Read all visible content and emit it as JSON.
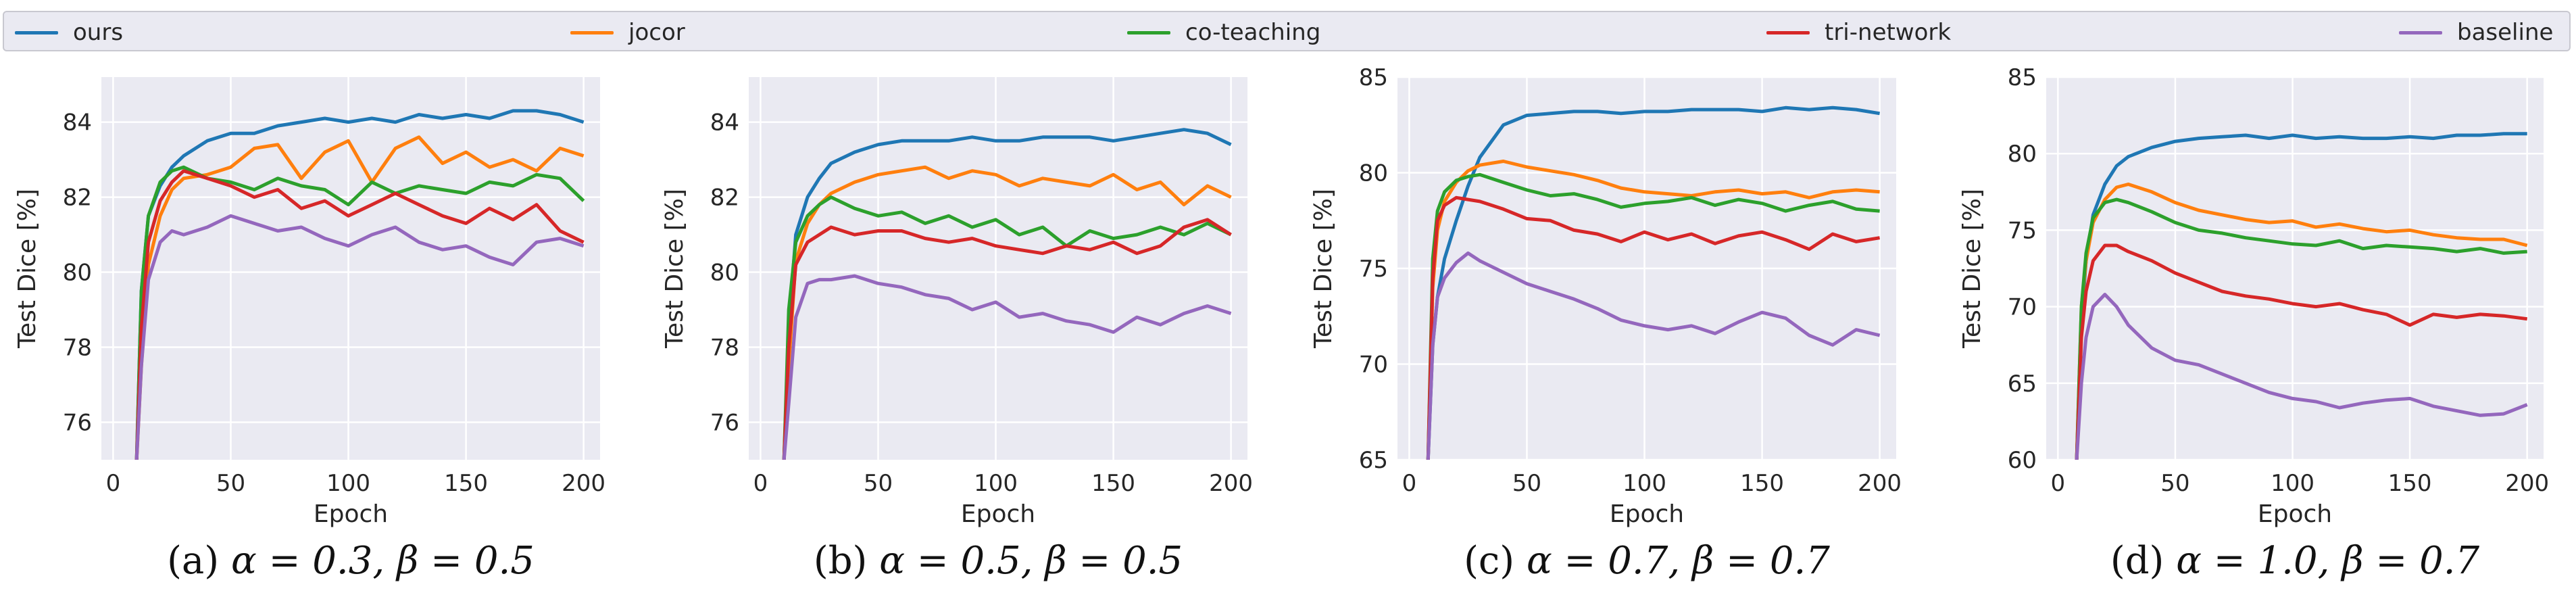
{
  "legend": {
    "items": [
      {
        "label": "ours",
        "color": "#1f77b4"
      },
      {
        "label": "jocor",
        "color": "#ff7f0e"
      },
      {
        "label": "co-teaching",
        "color": "#2ca02c"
      },
      {
        "label": "tri-network",
        "color": "#d62728"
      },
      {
        "label": "baseline",
        "color": "#9467bd"
      }
    ]
  },
  "chart_data": [
    {
      "type": "line",
      "caption_label": "(a)",
      "caption_formula": "α = 0.3, β = 0.5",
      "xlabel": "Epoch",
      "ylabel": "Test Dice [%]",
      "xlim": [
        -5,
        207
      ],
      "ylim": [
        75,
        85.2
      ],
      "xticks": [
        0,
        50,
        100,
        150,
        200
      ],
      "yticks": [
        76,
        78,
        80,
        82,
        84
      ],
      "grid": true,
      "x": [
        10,
        12,
        15,
        20,
        25,
        30,
        40,
        50,
        60,
        70,
        80,
        90,
        100,
        110,
        120,
        130,
        140,
        150,
        160,
        170,
        180,
        190,
        200
      ],
      "series": [
        {
          "name": "ours",
          "color": "#1f77b4",
          "values": [
            75,
            79.5,
            81.5,
            82.3,
            82.8,
            83.1,
            83.5,
            83.7,
            83.7,
            83.9,
            84.0,
            84.1,
            84.0,
            84.1,
            84.0,
            84.2,
            84.1,
            84.2,
            84.1,
            84.3,
            84.3,
            84.2,
            84.0
          ]
        },
        {
          "name": "jocor",
          "color": "#ff7f0e",
          "values": [
            75,
            77.5,
            80.2,
            81.5,
            82.2,
            82.5,
            82.6,
            82.8,
            83.3,
            83.4,
            82.5,
            83.2,
            83.5,
            82.4,
            83.3,
            83.6,
            82.9,
            83.2,
            82.8,
            83.0,
            82.7,
            83.3,
            83.1
          ]
        },
        {
          "name": "co-teaching",
          "color": "#2ca02c",
          "values": [
            75,
            79.5,
            81.5,
            82.4,
            82.7,
            82.8,
            82.5,
            82.4,
            82.2,
            82.5,
            82.3,
            82.2,
            81.8,
            82.4,
            82.1,
            82.3,
            82.2,
            82.1,
            82.4,
            82.3,
            82.6,
            82.5,
            81.9
          ]
        },
        {
          "name": "tri-network",
          "color": "#d62728",
          "values": [
            75,
            78.5,
            80.8,
            81.9,
            82.4,
            82.7,
            82.5,
            82.3,
            82.0,
            82.2,
            81.7,
            81.9,
            81.5,
            81.8,
            82.1,
            81.8,
            81.5,
            81.3,
            81.7,
            81.4,
            81.8,
            81.1,
            80.8
          ]
        },
        {
          "name": "baseline",
          "color": "#9467bd",
          "values": [
            75,
            77.5,
            79.8,
            80.8,
            81.1,
            81.0,
            81.2,
            81.5,
            81.3,
            81.1,
            81.2,
            80.9,
            80.7,
            81.0,
            81.2,
            80.8,
            80.6,
            80.7,
            80.4,
            80.2,
            80.8,
            80.9,
            80.7
          ]
        }
      ]
    },
    {
      "type": "line",
      "caption_label": "(b)",
      "caption_formula": "α = 0.5, β = 0.5",
      "xlabel": "Epoch",
      "ylabel": "Test Dice [%]",
      "xlim": [
        -5,
        207
      ],
      "ylim": [
        75,
        85.2
      ],
      "xticks": [
        0,
        50,
        100,
        150,
        200
      ],
      "yticks": [
        76,
        78,
        80,
        82,
        84
      ],
      "grid": true,
      "x": [
        10,
        12,
        15,
        20,
        25,
        30,
        40,
        50,
        60,
        70,
        80,
        90,
        100,
        110,
        120,
        130,
        140,
        150,
        160,
        170,
        180,
        190,
        200
      ],
      "series": [
        {
          "name": "ours",
          "color": "#1f77b4",
          "values": [
            75,
            78.5,
            81.0,
            82.0,
            82.5,
            82.9,
            83.2,
            83.4,
            83.5,
            83.5,
            83.5,
            83.6,
            83.5,
            83.5,
            83.6,
            83.6,
            83.6,
            83.5,
            83.6,
            83.7,
            83.8,
            83.7,
            83.4
          ]
        },
        {
          "name": "jocor",
          "color": "#ff7f0e",
          "values": [
            75,
            77.5,
            80.3,
            81.3,
            81.8,
            82.1,
            82.4,
            82.6,
            82.7,
            82.8,
            82.5,
            82.7,
            82.6,
            82.3,
            82.5,
            82.4,
            82.3,
            82.6,
            82.2,
            82.4,
            81.8,
            82.3,
            82.0
          ]
        },
        {
          "name": "co-teaching",
          "color": "#2ca02c",
          "values": [
            75,
            79.0,
            80.8,
            81.5,
            81.8,
            82.0,
            81.7,
            81.5,
            81.6,
            81.3,
            81.5,
            81.2,
            81.4,
            81.0,
            81.2,
            80.7,
            81.1,
            80.9,
            81.0,
            81.2,
            81.0,
            81.3,
            81.0
          ]
        },
        {
          "name": "tri-network",
          "color": "#d62728",
          "values": [
            75,
            78.0,
            80.2,
            80.8,
            81.0,
            81.2,
            81.0,
            81.1,
            81.1,
            80.9,
            80.8,
            80.9,
            80.7,
            80.6,
            80.5,
            80.7,
            80.6,
            80.8,
            80.5,
            80.7,
            81.2,
            81.4,
            81.0
          ]
        },
        {
          "name": "baseline",
          "color": "#9467bd",
          "values": [
            75,
            76.5,
            78.8,
            79.7,
            79.8,
            79.8,
            79.9,
            79.7,
            79.6,
            79.4,
            79.3,
            79.0,
            79.2,
            78.8,
            78.9,
            78.7,
            78.6,
            78.4,
            78.8,
            78.6,
            78.9,
            79.1,
            78.9
          ]
        }
      ]
    },
    {
      "type": "line",
      "caption_label": "(c)",
      "caption_formula": "α = 0.7, β = 0.7",
      "xlabel": "Epoch",
      "ylabel": "Test Dice [%]",
      "xlim": [
        -5,
        207
      ],
      "ylim": [
        65,
        85
      ],
      "xticks": [
        0,
        50,
        100,
        150,
        200
      ],
      "yticks": [
        65,
        70,
        75,
        80,
        85
      ],
      "grid": true,
      "x": [
        8,
        10,
        12,
        15,
        20,
        25,
        30,
        40,
        50,
        60,
        70,
        80,
        90,
        100,
        110,
        120,
        130,
        140,
        150,
        160,
        170,
        180,
        190,
        200
      ],
      "series": [
        {
          "name": "ours",
          "color": "#1f77b4",
          "values": [
            65,
            71.0,
            73.5,
            75.5,
            77.5,
            79.3,
            80.8,
            82.5,
            83.0,
            83.1,
            83.2,
            83.2,
            83.1,
            83.2,
            83.2,
            83.3,
            83.3,
            83.3,
            83.2,
            83.4,
            83.3,
            83.4,
            83.3,
            83.1
          ]
        },
        {
          "name": "jocor",
          "color": "#ff7f0e",
          "values": [
            65,
            74.0,
            77.0,
            78.5,
            79.5,
            80.1,
            80.4,
            80.6,
            80.3,
            80.1,
            79.9,
            79.6,
            79.2,
            79.0,
            78.9,
            78.8,
            79.0,
            79.1,
            78.9,
            79.0,
            78.7,
            79.0,
            79.1,
            79.0
          ]
        },
        {
          "name": "co-teaching",
          "color": "#2ca02c",
          "values": [
            65,
            75.5,
            78.0,
            79.0,
            79.6,
            79.8,
            79.9,
            79.5,
            79.1,
            78.8,
            78.9,
            78.6,
            78.2,
            78.4,
            78.5,
            78.7,
            78.3,
            78.6,
            78.4,
            78.0,
            78.3,
            78.5,
            78.1,
            78.0
          ]
        },
        {
          "name": "tri-network",
          "color": "#d62728",
          "values": [
            65,
            74.5,
            77.5,
            78.3,
            78.7,
            78.6,
            78.5,
            78.1,
            77.6,
            77.5,
            77.0,
            76.8,
            76.4,
            76.9,
            76.5,
            76.8,
            76.3,
            76.7,
            76.9,
            76.5,
            76.0,
            76.8,
            76.4,
            76.6
          ]
        },
        {
          "name": "baseline",
          "color": "#9467bd",
          "values": [
            65,
            71.0,
            73.5,
            74.5,
            75.3,
            75.8,
            75.4,
            74.8,
            74.2,
            73.8,
            73.4,
            72.9,
            72.3,
            72.0,
            71.8,
            72.0,
            71.6,
            72.2,
            72.7,
            72.4,
            71.5,
            71.0,
            71.8,
            71.5
          ]
        }
      ]
    },
    {
      "type": "line",
      "caption_label": "(d)",
      "caption_formula": "α = 1.0, β = 0.7",
      "xlabel": "Epoch",
      "ylabel": "Test Dice [%]",
      "xlim": [
        -5,
        207
      ],
      "ylim": [
        60,
        85
      ],
      "xticks": [
        0,
        50,
        100,
        150,
        200
      ],
      "yticks": [
        60,
        65,
        70,
        75,
        80,
        85
      ],
      "grid": true,
      "x": [
        8,
        10,
        12,
        15,
        20,
        25,
        30,
        40,
        50,
        60,
        70,
        80,
        90,
        100,
        110,
        120,
        130,
        140,
        150,
        160,
        170,
        180,
        190,
        200
      ],
      "series": [
        {
          "name": "ours",
          "color": "#1f77b4",
          "values": [
            60,
            69.0,
            73.0,
            76.0,
            78.0,
            79.2,
            79.8,
            80.4,
            80.8,
            81.0,
            81.1,
            81.2,
            81.0,
            81.2,
            81.0,
            81.1,
            81.0,
            81.0,
            81.1,
            81.0,
            81.2,
            81.2,
            81.3,
            81.3
          ]
        },
        {
          "name": "jocor",
          "color": "#ff7f0e",
          "values": [
            60,
            70.0,
            73.0,
            75.5,
            77.0,
            77.8,
            78.0,
            77.5,
            76.8,
            76.3,
            76.0,
            75.7,
            75.5,
            75.6,
            75.2,
            75.4,
            75.1,
            74.9,
            75.0,
            74.7,
            74.5,
            74.4,
            74.4,
            74.0
          ]
        },
        {
          "name": "co-teaching",
          "color": "#2ca02c",
          "values": [
            60,
            70.0,
            73.5,
            75.8,
            76.8,
            77.0,
            76.8,
            76.2,
            75.5,
            75.0,
            74.8,
            74.5,
            74.3,
            74.1,
            74.0,
            74.3,
            73.8,
            74.0,
            73.9,
            73.8,
            73.6,
            73.8,
            73.5,
            73.6
          ]
        },
        {
          "name": "tri-network",
          "color": "#d62728",
          "values": [
            60,
            68.0,
            71.0,
            73.0,
            74.0,
            74.0,
            73.6,
            73.0,
            72.2,
            71.6,
            71.0,
            70.7,
            70.5,
            70.2,
            70.0,
            70.2,
            69.8,
            69.5,
            68.8,
            69.5,
            69.3,
            69.5,
            69.4,
            69.2
          ]
        },
        {
          "name": "baseline",
          "color": "#9467bd",
          "values": [
            60,
            65.0,
            68.0,
            70.0,
            70.8,
            70.0,
            68.8,
            67.3,
            66.5,
            66.2,
            65.6,
            65.0,
            64.4,
            64.0,
            63.8,
            63.4,
            63.7,
            63.9,
            64.0,
            63.5,
            63.2,
            62.9,
            63.0,
            63.6
          ]
        }
      ]
    }
  ]
}
